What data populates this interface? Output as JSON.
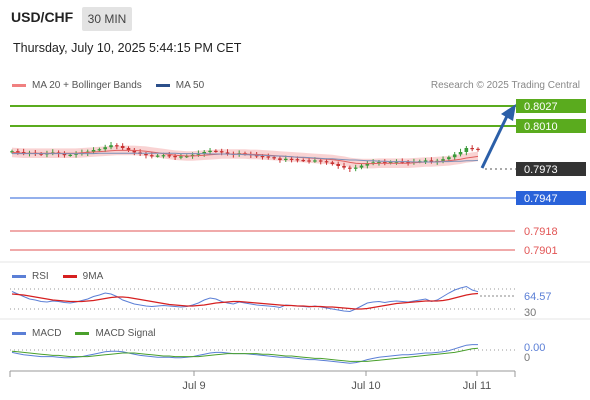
{
  "header": {
    "symbol": "USD/CHF",
    "timeframe": "30 MIN",
    "datetime": "Thursday, July 10, 2025 5:44:15 PM CET",
    "research": "Research © 2025 Trading Central"
  },
  "legend": {
    "main": [
      {
        "label": "MA 20 + Bollinger Bands",
        "color": "#f08080"
      },
      {
        "label": "MA 50",
        "color": "#2b4f8a"
      }
    ],
    "rsi": [
      {
        "label": "RSI",
        "color": "#5b7fd6"
      },
      {
        "label": "9MA",
        "color": "#d62020"
      }
    ],
    "macd": [
      {
        "label": "MACD",
        "color": "#5b7fd6"
      },
      {
        "label": "MACD Signal",
        "color": "#4aa02c"
      }
    ]
  },
  "colors": {
    "green_level": "#5aab1e",
    "blue_level": "#2962d9",
    "red_level": "#e25555",
    "dark_tag": "#333333",
    "arrow": "#2b5fa8",
    "candle_up": "#3a9a3a",
    "candle_down": "#c83232",
    "band_fill": "#f7c8c8"
  },
  "chart_data": [
    {
      "type": "candlestick",
      "title": "USD/CHF 30 MIN",
      "xlabel": "",
      "ylabel": "",
      "ylim": [
        0.7894,
        0.8034
      ],
      "x_ticks": [
        "Jul 9",
        "Jul 10",
        "Jul 11"
      ],
      "price_levels": [
        {
          "value": "0.8027",
          "kind": "resistance"
        },
        {
          "value": "0.8010",
          "kind": "resistance"
        },
        {
          "value": "0.7973",
          "kind": "last"
        },
        {
          "value": "0.7947",
          "kind": "pivot"
        },
        {
          "value": "0.7918",
          "kind": "support"
        },
        {
          "value": "0.7901",
          "kind": "support"
        }
      ],
      "close": [
        0.797,
        0.7968,
        0.7965,
        0.7966,
        0.7964,
        0.7962,
        0.7965,
        0.7967,
        0.7963,
        0.796,
        0.7961,
        0.7964,
        0.7966,
        0.7969,
        0.7973,
        0.7975,
        0.798,
        0.7985,
        0.7983,
        0.7978,
        0.7972,
        0.7967,
        0.7963,
        0.796,
        0.7958,
        0.7959,
        0.796,
        0.7958,
        0.7956,
        0.7957,
        0.7958,
        0.7961,
        0.7964,
        0.7968,
        0.7971,
        0.797,
        0.7967,
        0.7964,
        0.7962,
        0.7965,
        0.7963,
        0.796,
        0.7958,
        0.7957,
        0.7955,
        0.7952,
        0.7948,
        0.7951,
        0.795,
        0.7948,
        0.7947,
        0.7946,
        0.7947,
        0.7945,
        0.7942,
        0.7938,
        0.7933,
        0.7929,
        0.7926,
        0.7929,
        0.7934,
        0.794,
        0.7942,
        0.7943,
        0.7941,
        0.7943,
        0.7944,
        0.7943,
        0.7942,
        0.7944,
        0.7945,
        0.7947,
        0.7944,
        0.7946,
        0.795,
        0.7955,
        0.7962,
        0.7968,
        0.7978,
        0.7976,
        0.7973
      ],
      "ma20": [
        0.7967,
        0.7966,
        0.7965,
        0.7965,
        0.7965,
        0.7965,
        0.7965,
        0.7965,
        0.7965,
        0.7965,
        0.7965,
        0.7965,
        0.7966,
        0.7967,
        0.7968,
        0.7969,
        0.797,
        0.7971,
        0.7972,
        0.7972,
        0.7972,
        0.7972,
        0.7971,
        0.797,
        0.7968,
        0.7966,
        0.7964,
        0.7962,
        0.796,
        0.7959,
        0.7958,
        0.7958,
        0.7959,
        0.796,
        0.7961,
        0.7962,
        0.7963,
        0.7963,
        0.7963,
        0.7963,
        0.7963,
        0.7962,
        0.7962,
        0.7961,
        0.796,
        0.7959,
        0.7958,
        0.7957,
        0.7956,
        0.7955,
        0.7954,
        0.7953,
        0.7952,
        0.7951,
        0.795,
        0.7949,
        0.7947,
        0.7945,
        0.7942,
        0.794,
        0.7939,
        0.7939,
        0.7939,
        0.794,
        0.794,
        0.794,
        0.794,
        0.794,
        0.794,
        0.7941,
        0.7942,
        0.7943,
        0.7943,
        0.7944,
        0.7945,
        0.7946,
        0.7948,
        0.795,
        0.7953,
        0.7955,
        0.7957
      ],
      "ma50": [
        0.7964,
        0.7964,
        0.7964,
        0.7964,
        0.7964,
        0.7964,
        0.7964,
        0.7964,
        0.7964,
        0.7964,
        0.7964,
        0.7964,
        0.7964,
        0.7964,
        0.7964,
        0.7965,
        0.7965,
        0.7965,
        0.7965,
        0.7965,
        0.7965,
        0.7965,
        0.7965,
        0.7965,
        0.7965,
        0.7965,
        0.7965,
        0.7965,
        0.7965,
        0.7964,
        0.7964,
        0.7964,
        0.7964,
        0.7964,
        0.7963,
        0.7963,
        0.7963,
        0.7963,
        0.7962,
        0.7962,
        0.7961,
        0.7961,
        0.796,
        0.796,
        0.7959,
        0.7958,
        0.7958,
        0.7957,
        0.7956,
        0.7955,
        0.7955,
        0.7954,
        0.7953,
        0.7952,
        0.7951,
        0.7951,
        0.795,
        0.7949,
        0.7948,
        0.7948,
        0.7947,
        0.7946,
        0.7946,
        0.7945,
        0.7945,
        0.7944,
        0.7944,
        0.7944,
        0.7944,
        0.7943,
        0.7943,
        0.7943,
        0.7943,
        0.7943,
        0.7944,
        0.7944,
        0.7945,
        0.7945,
        0.7946,
        0.7946,
        0.7947
      ],
      "bollinger_width": 0.0012
    },
    {
      "type": "line",
      "title": "RSI",
      "y_labels": [
        "64.57",
        "30"
      ],
      "rsi": [
        65,
        60,
        55,
        50,
        48,
        45,
        44,
        46,
        45,
        43,
        42,
        44,
        47,
        50,
        55,
        58,
        62,
        60,
        55,
        48,
        44,
        40,
        38,
        36,
        35,
        36,
        37,
        36,
        35,
        34,
        35,
        38,
        42,
        48,
        52,
        50,
        45,
        42,
        40,
        44,
        42,
        40,
        38,
        37,
        36,
        35,
        33,
        38,
        37,
        36,
        35,
        34,
        36,
        34,
        32,
        30,
        28,
        26,
        25,
        30,
        36,
        42,
        44,
        45,
        43,
        45,
        46,
        45,
        44,
        46,
        48,
        50,
        45,
        48,
        55,
        62,
        68,
        72,
        75,
        68,
        64.57
      ],
      "ma9": [
        60,
        59,
        58,
        56,
        54,
        52,
        50,
        48,
        47,
        46,
        45,
        45,
        45,
        46,
        47,
        49,
        51,
        53,
        54,
        54,
        53,
        51,
        49,
        47,
        45,
        43,
        41,
        39,
        38,
        37,
        36,
        36,
        37,
        38,
        40,
        42,
        43,
        44,
        45,
        45,
        44,
        43,
        42,
        41,
        40,
        39,
        38,
        37,
        37,
        36,
        36,
        35,
        35,
        35,
        34,
        34,
        33,
        32,
        31,
        30,
        30,
        31,
        33,
        35,
        37,
        39,
        41,
        42,
        43,
        44,
        45,
        46,
        46,
        46,
        47,
        49,
        52,
        55,
        58,
        60,
        61
      ]
    },
    {
      "type": "line",
      "title": "MACD",
      "y_labels": [
        "0.00",
        "0"
      ],
      "macd": [
        -0.0004,
        -0.0006,
        -0.0008,
        -0.0009,
        -0.001,
        -0.0011,
        -0.0011,
        -0.0011,
        -0.0012,
        -0.0013,
        -0.0013,
        -0.0012,
        -0.0011,
        -0.0009,
        -0.0007,
        -0.0005,
        -0.0003,
        -0.0002,
        -0.0002,
        -0.0003,
        -0.0005,
        -0.0007,
        -0.0009,
        -0.001,
        -0.0011,
        -0.0012,
        -0.0012,
        -0.0012,
        -0.0013,
        -0.0013,
        -0.0012,
        -0.0011,
        -0.0009,
        -0.0007,
        -0.0005,
        -0.0004,
        -0.0004,
        -0.0005,
        -0.0006,
        -0.0006,
        -0.0006,
        -0.0007,
        -0.0008,
        -0.0009,
        -0.001,
        -0.0011,
        -0.0012,
        -0.0012,
        -0.0013,
        -0.0014,
        -0.0015,
        -0.0016,
        -0.0016,
        -0.0017,
        -0.0018,
        -0.0019,
        -0.002,
        -0.0021,
        -0.0022,
        -0.0021,
        -0.0019,
        -0.0016,
        -0.0014,
        -0.0012,
        -0.0011,
        -0.001,
        -0.0009,
        -0.0008,
        -0.0008,
        -0.0007,
        -0.0006,
        -0.0005,
        -0.0005,
        -0.0004,
        -0.0003,
        -0.0001,
        0.0002,
        0.0005,
        0.0008,
        0.0009,
        0.0009
      ],
      "signal": [
        -0.0002,
        -0.0003,
        -0.0004,
        -0.0005,
        -0.0006,
        -0.0007,
        -0.0008,
        -0.0009,
        -0.0009,
        -0.001,
        -0.0011,
        -0.0011,
        -0.0011,
        -0.0011,
        -0.001,
        -0.0009,
        -0.0008,
        -0.0007,
        -0.0006,
        -0.0005,
        -0.0005,
        -0.0005,
        -0.0006,
        -0.0007,
        -0.0008,
        -0.0009,
        -0.001,
        -0.001,
        -0.0011,
        -0.0011,
        -0.0011,
        -0.0011,
        -0.0011,
        -0.001,
        -0.0009,
        -0.0008,
        -0.0007,
        -0.0006,
        -0.0006,
        -0.0006,
        -0.0006,
        -0.0006,
        -0.0006,
        -0.0007,
        -0.0007,
        -0.0008,
        -0.0009,
        -0.001,
        -0.001,
        -0.0011,
        -0.0012,
        -0.0013,
        -0.0014,
        -0.0014,
        -0.0015,
        -0.0016,
        -0.0017,
        -0.0018,
        -0.0019,
        -0.0019,
        -0.0019,
        -0.0019,
        -0.0018,
        -0.0017,
        -0.0016,
        -0.0015,
        -0.0014,
        -0.0013,
        -0.0012,
        -0.0011,
        -0.001,
        -0.0009,
        -0.0008,
        -0.0007,
        -0.0006,
        -0.0005,
        -0.0004,
        -0.0002,
        0.0,
        0.0002,
        0.0003
      ]
    }
  ]
}
